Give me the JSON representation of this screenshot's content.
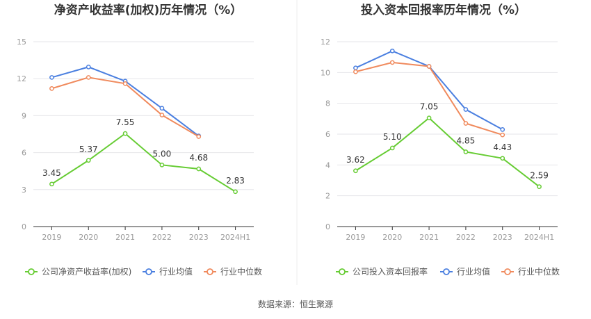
{
  "source_label": "数据来源：恒生聚源",
  "colors": {
    "company": "#66cc33",
    "average": "#4a7fe0",
    "median": "#f08a5d",
    "grid": "#e6e6ea",
    "divider": "#eeeeee"
  },
  "chart_data": [
    {
      "type": "line",
      "title": "净资产收益率(加权)历年情况（%）",
      "categories": [
        "2019",
        "2020",
        "2021",
        "2022",
        "2023",
        "2024H1"
      ],
      "ylim": [
        0,
        15
      ],
      "yticks": [
        "0",
        "3",
        "6",
        "9",
        "12",
        "15"
      ],
      "grid": true,
      "legend_position": "bottom",
      "series": [
        {
          "name": "公司净资产收益率(加权)",
          "color_key": "company",
          "labeled": true,
          "values": [
            3.45,
            5.37,
            7.55,
            5.0,
            4.68,
            2.83
          ],
          "labels": [
            "3.45",
            "5.37",
            "7.55",
            "5.00",
            "4.68",
            "2.83"
          ]
        },
        {
          "name": "行业均值",
          "color_key": "average",
          "labeled": false,
          "values": [
            12.1,
            12.95,
            11.8,
            9.6,
            7.35,
            null
          ]
        },
        {
          "name": "行业中位数",
          "color_key": "median",
          "labeled": false,
          "values": [
            11.2,
            12.1,
            11.6,
            9.05,
            7.3,
            null
          ]
        }
      ]
    },
    {
      "type": "line",
      "title": "投入资本回报率历年情况（%）",
      "categories": [
        "2019",
        "2020",
        "2021",
        "2022",
        "2023",
        "2024H1"
      ],
      "ylim": [
        0,
        12
      ],
      "yticks": [
        "0",
        "2",
        "4",
        "6",
        "8",
        "10",
        "12"
      ],
      "grid": true,
      "legend_position": "bottom",
      "series": [
        {
          "name": "公司投入资本回报率",
          "color_key": "company",
          "labeled": true,
          "values": [
            3.62,
            5.1,
            7.05,
            4.85,
            4.43,
            2.59
          ],
          "labels": [
            "3.62",
            "5.10",
            "7.05",
            "4.85",
            "4.43",
            "2.59"
          ]
        },
        {
          "name": "行业均值",
          "color_key": "average",
          "labeled": false,
          "values": [
            10.3,
            11.4,
            10.4,
            7.6,
            6.3,
            null
          ]
        },
        {
          "name": "行业中位数",
          "color_key": "median",
          "labeled": false,
          "values": [
            10.05,
            10.65,
            10.4,
            6.7,
            5.95,
            null
          ]
        }
      ]
    }
  ]
}
